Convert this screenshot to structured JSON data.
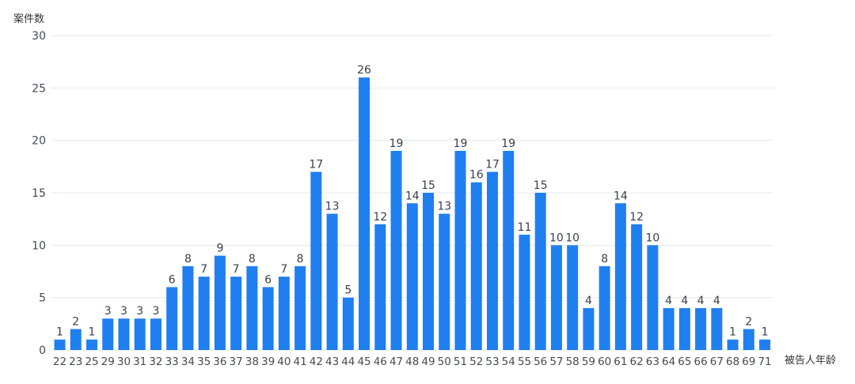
{
  "chart_data": {
    "type": "bar",
    "ylabel": "案件数",
    "xlabel": "被告人年龄",
    "ylim": [
      0,
      30
    ],
    "yticks": [
      0,
      5,
      10,
      15,
      20,
      25,
      30
    ],
    "grid": true,
    "color": "#1f7ff0",
    "categories": [
      "22",
      "23",
      "25",
      "29",
      "30",
      "31",
      "32",
      "33",
      "34",
      "35",
      "36",
      "37",
      "38",
      "39",
      "40",
      "41",
      "42",
      "43",
      "44",
      "45",
      "46",
      "47",
      "48",
      "49",
      "50",
      "51",
      "52",
      "53",
      "54",
      "55",
      "56",
      "57",
      "58",
      "59",
      "60",
      "61",
      "62",
      "63",
      "64",
      "65",
      "66",
      "67",
      "68",
      "69",
      "71"
    ],
    "values": [
      1,
      2,
      1,
      3,
      3,
      3,
      3,
      6,
      8,
      7,
      9,
      7,
      8,
      6,
      7,
      8,
      17,
      13,
      5,
      26,
      12,
      19,
      14,
      15,
      13,
      19,
      16,
      17,
      19,
      11,
      15,
      10,
      10,
      4,
      8,
      14,
      12,
      10,
      4,
      4,
      4,
      4,
      1,
      2,
      1
    ]
  }
}
